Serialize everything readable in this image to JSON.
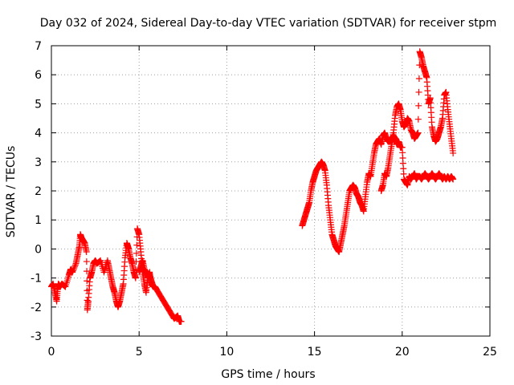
{
  "chart_data": {
    "type": "scatter",
    "title": "Day 032 of 2024, Sidereal Day-to-day VTEC variation (SDTVAR) for receiver stpm",
    "xlabel": "GPS time / hours",
    "ylabel": "SDTVAR / TECUs",
    "xlim": [
      0,
      25
    ],
    "ylim": [
      -3,
      7
    ],
    "xticks": [
      0,
      5,
      10,
      15,
      20,
      25
    ],
    "yticks": [
      -3,
      -2,
      -1,
      0,
      1,
      2,
      3,
      4,
      5,
      6,
      7
    ],
    "grid": true,
    "marker": "+",
    "series": [
      {
        "name": "SDTVAR",
        "color": "#ff0000",
        "segments": [
          {
            "x": [
              0.0,
              0.1,
              0.2,
              0.3,
              0.35,
              0.4,
              0.5,
              0.6,
              0.8,
              1.0,
              1.1,
              1.2,
              1.4,
              1.5,
              1.6,
              1.65,
              1.7,
              1.8,
              1.9,
              2.0,
              2.05,
              2.1,
              2.2,
              2.3,
              2.4,
              2.5,
              2.6,
              2.8,
              3.0,
              3.2,
              3.3,
              3.4,
              3.5,
              3.6,
              3.7,
              3.8,
              3.9,
              4.0,
              4.1,
              4.2,
              4.3,
              4.35,
              4.4,
              4.5,
              4.6,
              4.7,
              4.8,
              4.9,
              5.0,
              5.1,
              5.2,
              5.3,
              5.4,
              5.5,
              5.6,
              5.7,
              5.8,
              5.9,
              6.0,
              6.2,
              6.4,
              6.6,
              6.8,
              7.0,
              7.2,
              7.3,
              7.4
            ],
            "y": [
              -1.3,
              -1.2,
              -1.5,
              -1.8,
              -1.4,
              -1.2,
              -1.3,
              -1.2,
              -1.3,
              -0.9,
              -0.7,
              -0.8,
              -0.5,
              -0.2,
              0.1,
              0.5,
              0.4,
              0.3,
              0.2,
              -0.1,
              -2.1,
              -1.8,
              -1.0,
              -0.8,
              -0.5,
              -0.4,
              -0.5,
              -0.4,
              -0.8,
              -0.4,
              -0.7,
              -1.0,
              -1.3,
              -1.5,
              -1.8,
              -2.0,
              -1.8,
              -1.5,
              -1.2,
              -0.3,
              0.2,
              0.1,
              0.0,
              -0.3,
              -0.5,
              -0.8,
              -1.0,
              0.7,
              0.5,
              -0.1,
              -0.8,
              -1.2,
              -1.5,
              -1.0,
              -0.8,
              -1.2,
              -1.3,
              -1.3,
              -1.4,
              -1.6,
              -1.8,
              -2.0,
              -2.2,
              -2.4,
              -2.3,
              -2.5,
              -2.5
            ]
          },
          {
            "x": [
              5.0,
              5.1,
              5.2,
              5.3,
              5.4,
              5.5,
              5.6,
              5.7,
              5.8
            ],
            "y": [
              -0.8,
              -0.6,
              -0.4,
              -0.7,
              -0.8,
              -1.0,
              -0.9,
              -1.1,
              -1.3
            ]
          },
          {
            "x": [
              14.3,
              14.4,
              14.5,
              14.6,
              14.7,
              14.8,
              14.9,
              15.0,
              15.1,
              15.2,
              15.3,
              15.4,
              15.5,
              15.6,
              15.7,
              15.8,
              15.9,
              16.0,
              16.1,
              16.2,
              16.3,
              16.4,
              16.5,
              16.6,
              16.7,
              16.8,
              16.9,
              17.0,
              17.1,
              17.2,
              17.3,
              17.4,
              17.5,
              17.6,
              17.7,
              17.8,
              17.9,
              18.0,
              18.1,
              18.2,
              18.3,
              18.4,
              18.5,
              18.6,
              18.7,
              18.8,
              18.9,
              19.0,
              19.1,
              19.2,
              19.3,
              19.4,
              19.5,
              19.6,
              19.7,
              19.8,
              19.9,
              20.0,
              20.1,
              20.2,
              20.3,
              20.4,
              20.5,
              20.6,
              20.7,
              20.8,
              20.9,
              21.0,
              21.1,
              21.2,
              21.3,
              21.4,
              21.5,
              21.6,
              21.7,
              21.8,
              21.9,
              22.0,
              22.1,
              22.2,
              22.3,
              22.4,
              22.5,
              22.6,
              22.7,
              22.8,
              22.9
            ],
            "y": [
              0.8,
              1.0,
              1.2,
              1.4,
              1.6,
              2.0,
              2.3,
              2.5,
              2.7,
              2.8,
              2.9,
              3.0,
              2.9,
              2.7,
              2.2,
              1.5,
              1.0,
              0.5,
              0.3,
              0.1,
              0.0,
              -0.1,
              0.2,
              0.5,
              0.8,
              1.2,
              1.6,
              2.0,
              2.1,
              2.2,
              2.1,
              1.9,
              1.8,
              1.6,
              1.5,
              1.3,
              1.8,
              2.3,
              2.6,
              2.5,
              2.9,
              3.3,
              3.6,
              3.7,
              3.8,
              3.6,
              3.9,
              4.0,
              3.8,
              3.7,
              3.7,
              3.8,
              3.9,
              3.8,
              3.6,
              3.7,
              3.5,
              3.5,
              2.4,
              2.3,
              2.2,
              2.5,
              2.4,
              2.5,
              2.6,
              2.4,
              2.5,
              2.5,
              2.4,
              2.5,
              2.6,
              2.5,
              2.4,
              2.5,
              2.6,
              2.5,
              2.4,
              2.5,
              2.6,
              2.5,
              2.4,
              2.5,
              2.4,
              2.5,
              2.4,
              2.5,
              2.4
            ]
          },
          {
            "x": [
              18.8,
              18.9,
              19.0,
              19.1,
              19.2,
              19.3,
              19.4,
              19.5,
              19.6,
              19.7,
              19.8,
              19.9,
              20.0,
              20.1,
              20.2,
              20.3,
              20.4,
              20.5,
              20.6,
              20.7,
              20.8,
              20.9,
              21.0,
              21.1,
              21.2,
              21.3,
              21.4,
              21.5,
              21.6,
              21.7,
              21.8,
              21.9,
              22.0,
              22.1,
              22.2,
              22.3,
              22.4,
              22.5,
              22.6,
              22.7,
              22.8,
              22.9
            ],
            "y": [
              2.0,
              2.2,
              2.6,
              2.5,
              2.8,
              3.2,
              3.6,
              4.0,
              4.6,
              4.9,
              5.0,
              4.8,
              4.4,
              4.2,
              4.3,
              4.5,
              4.4,
              4.1,
              4.0,
              3.8,
              3.9,
              4.0,
              6.8,
              6.6,
              6.3,
              6.1,
              5.9,
              5.0,
              5.2,
              4.2,
              3.9,
              3.7,
              3.8,
              4.0,
              4.2,
              4.5,
              5.3,
              5.4,
              4.8,
              4.3,
              3.8,
              3.3
            ]
          }
        ]
      }
    ]
  }
}
